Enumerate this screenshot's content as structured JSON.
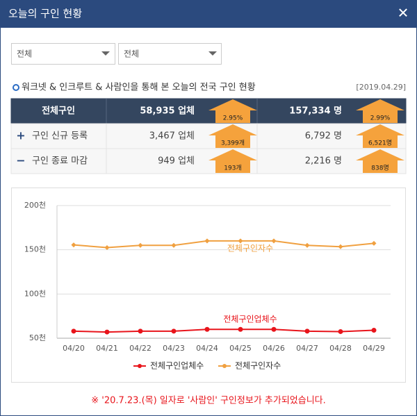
{
  "header": {
    "title": "오늘의 구인 현황",
    "close": "✕"
  },
  "filters": [
    "전체",
    "전체"
  ],
  "section": {
    "title": "워크넷 & 인크루트 & 사람인을 통해 본 오늘의 전국 구인 현황",
    "date": "[2019.04.29]"
  },
  "table": {
    "rows": [
      {
        "icon": "",
        "label": "전체구인",
        "a": "58,935 업체",
        "a_badge": "2.95%",
        "b": "157,334 명",
        "b_badge": "2.99%"
      },
      {
        "icon": "+",
        "label": "구인 신규 등록",
        "a": "3,467 업체",
        "a_badge": "3,399개",
        "b": "6,792 명",
        "b_badge": "6,521명"
      },
      {
        "icon": "−",
        "label": "구인 종료 마감",
        "a": "949 업체",
        "a_badge": "193개",
        "b": "2,216 명",
        "b_badge": "838명"
      }
    ]
  },
  "chart_data": {
    "type": "line",
    "categories": [
      "04/20",
      "04/21",
      "04/22",
      "04/23",
      "04/24",
      "04/25",
      "04/26",
      "04/27",
      "04/28",
      "04/29"
    ],
    "series": [
      {
        "name": "전체구인업체수",
        "color": "#e8141b",
        "values": [
          58,
          57,
          58,
          58,
          60,
          60,
          60,
          58,
          57.5,
          59
        ]
      },
      {
        "name": "전체구인자수",
        "color": "#f0a040",
        "values": [
          155.5,
          152.5,
          155,
          155,
          160,
          160,
          160,
          155,
          153.5,
          157.3
        ]
      }
    ],
    "ylim": [
      50,
      200
    ],
    "yticks": [
      {
        "value": 50,
        "label": "50천"
      },
      {
        "value": 100,
        "label": "100천"
      },
      {
        "value": 150,
        "label": "150천"
      },
      {
        "value": 200,
        "label": "200천"
      }
    ],
    "grid": true
  },
  "notice": "※ '20.7.23.(목) 일자로 '사람인' 구인정보가 추가되었습니다."
}
